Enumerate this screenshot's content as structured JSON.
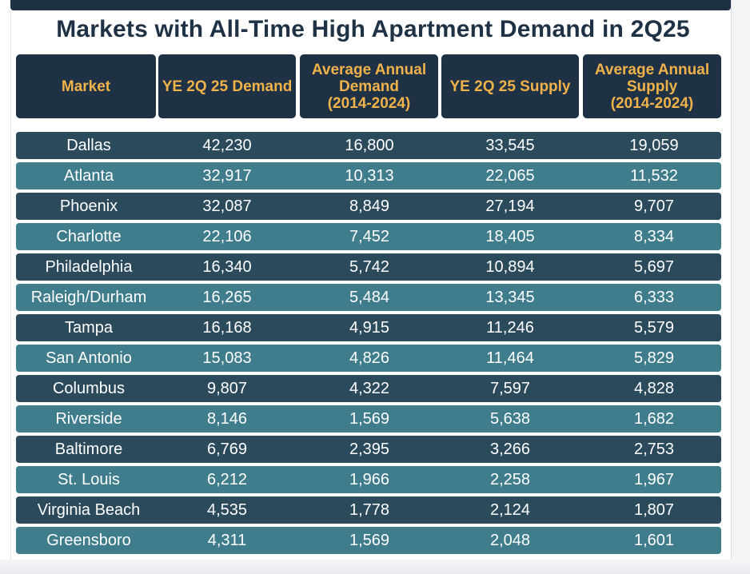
{
  "chart_data": {
    "type": "table",
    "title": "Markets with All-Time High Apartment Demand in 2Q25",
    "columns": [
      {
        "key": "market",
        "label_lines": [
          "Market"
        ]
      },
      {
        "key": "demand",
        "label_lines": [
          "YE 2Q 25 Demand"
        ]
      },
      {
        "key": "avg_demand",
        "label_lines": [
          "Average Annual",
          "Demand",
          "(2014-2024)"
        ]
      },
      {
        "key": "supply",
        "label_lines": [
          "YE 2Q 25 Supply"
        ]
      },
      {
        "key": "avg_supply",
        "label_lines": [
          "Average Annual",
          "Supply",
          "(2014-2024)"
        ]
      }
    ],
    "rows": [
      {
        "market": "Dallas",
        "demand": "42,230",
        "avg_demand": "16,800",
        "supply": "33,545",
        "avg_supply": "19,059"
      },
      {
        "market": "Atlanta",
        "demand": "32,917",
        "avg_demand": "10,313",
        "supply": "22,065",
        "avg_supply": "11,532"
      },
      {
        "market": "Phoenix",
        "demand": "32,087",
        "avg_demand": "8,849",
        "supply": "27,194",
        "avg_supply": "9,707"
      },
      {
        "market": "Charlotte",
        "demand": "22,106",
        "avg_demand": "7,452",
        "supply": "18,405",
        "avg_supply": "8,334"
      },
      {
        "market": "Philadelphia",
        "demand": "16,340",
        "avg_demand": "5,742",
        "supply": "10,894",
        "avg_supply": "5,697"
      },
      {
        "market": "Raleigh/Durham",
        "demand": "16,265",
        "avg_demand": "5,484",
        "supply": "13,345",
        "avg_supply": "6,333"
      },
      {
        "market": "Tampa",
        "demand": "16,168",
        "avg_demand": "4,915",
        "supply": "11,246",
        "avg_supply": "5,579"
      },
      {
        "market": "San Antonio",
        "demand": "15,083",
        "avg_demand": "4,826",
        "supply": "11,464",
        "avg_supply": "5,829"
      },
      {
        "market": "Columbus",
        "demand": "9,807",
        "avg_demand": "4,322",
        "supply": "7,597",
        "avg_supply": "4,828"
      },
      {
        "market": "Riverside",
        "demand": "8,146",
        "avg_demand": "1,569",
        "supply": "5,638",
        "avg_supply": "1,682"
      },
      {
        "market": "Baltimore",
        "demand": "6,769",
        "avg_demand": "2,395",
        "supply": "3,266",
        "avg_supply": "2,753"
      },
      {
        "market": "St. Louis",
        "demand": "6,212",
        "avg_demand": "1,966",
        "supply": "2,258",
        "avg_supply": "1,967"
      },
      {
        "market": "Virginia Beach",
        "demand": "4,535",
        "avg_demand": "1,778",
        "supply": "2,124",
        "avg_supply": "1,807"
      },
      {
        "market": "Greensboro",
        "demand": "4,311",
        "avg_demand": "1,569",
        "supply": "2,048",
        "avg_supply": "1,601"
      }
    ]
  },
  "colors": {
    "header_bg": "#1f3144",
    "header_text": "#f0b24a",
    "title_text": "#1f3144",
    "row_dark": "#2b4a5c",
    "row_light": "#3f7d8c",
    "row_text": "#ffffff"
  }
}
